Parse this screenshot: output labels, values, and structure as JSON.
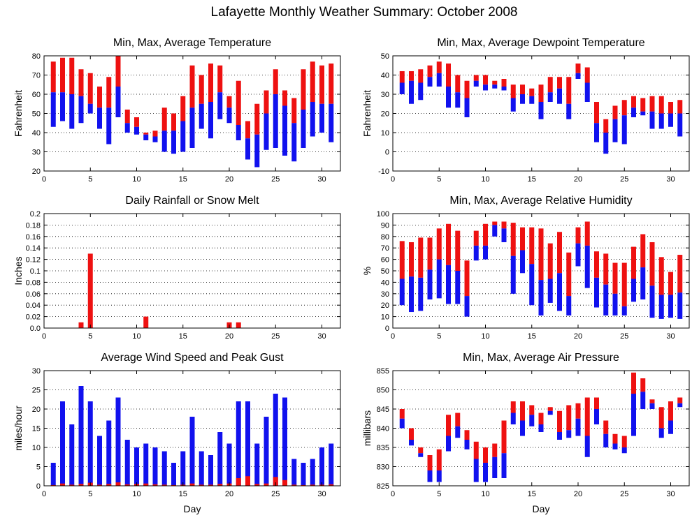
{
  "title": "Lafayette Monthly Weather Summary: October 2008",
  "colors": {
    "red": "#ee1111",
    "blue": "#1111ee"
  },
  "chart_data": [
    {
      "id": "temp",
      "type": "bar",
      "title": "Min, Max, Average Temperature",
      "xlabel": "",
      "ylabel": "Fahrenheit",
      "xlim": [
        0,
        32
      ],
      "ylim": [
        20,
        80
      ],
      "xticks": [
        0,
        5,
        10,
        15,
        20,
        25,
        30
      ],
      "yticks": [
        20,
        30,
        40,
        50,
        60,
        70,
        80
      ],
      "grid": true,
      "x": [
        1,
        2,
        3,
        4,
        5,
        6,
        7,
        8,
        9,
        10,
        11,
        12,
        13,
        14,
        15,
        16,
        17,
        18,
        19,
        20,
        21,
        22,
        23,
        24,
        25,
        26,
        27,
        28,
        29,
        30,
        31
      ],
      "series": [
        {
          "kind": "range",
          "values_min": [
            43,
            46,
            42,
            45,
            50,
            42,
            34,
            48,
            40,
            39,
            36,
            35,
            30,
            29,
            30,
            32,
            42,
            37,
            47,
            45,
            36,
            26,
            22,
            31,
            32,
            28,
            25,
            32,
            38,
            40,
            35
          ],
          "values_avg": [
            61,
            61,
            60,
            59,
            55,
            53,
            53,
            64,
            45,
            43,
            39,
            38,
            41,
            41,
            46,
            53,
            55,
            56,
            61,
            53,
            44,
            37,
            39,
            50,
            60,
            54,
            45,
            52,
            56,
            55,
            55
          ],
          "values_max": [
            77,
            79,
            79,
            73,
            71,
            64,
            69,
            80,
            52,
            48,
            40,
            41,
            53,
            50,
            59,
            75,
            70,
            76,
            75,
            59,
            67,
            46,
            55,
            62,
            73,
            62,
            58,
            73,
            77,
            75,
            76
          ]
        }
      ]
    },
    {
      "id": "dew",
      "type": "bar",
      "title": "Min, Max, Average Dewpoint Temperature",
      "xlabel": "",
      "ylabel": "Fahrenheit",
      "xlim": [
        0,
        32
      ],
      "ylim": [
        -10,
        50
      ],
      "xticks": [
        0,
        5,
        10,
        15,
        20,
        25,
        30
      ],
      "yticks": [
        -10,
        0,
        10,
        20,
        30,
        40,
        50
      ],
      "grid": true,
      "x": [
        1,
        2,
        3,
        4,
        5,
        6,
        7,
        8,
        9,
        10,
        11,
        12,
        13,
        14,
        15,
        16,
        17,
        18,
        19,
        20,
        21,
        22,
        23,
        24,
        25,
        26,
        27,
        28,
        29,
        30,
        31
      ],
      "series": [
        {
          "kind": "range",
          "values_min": [
            30,
            25,
            27,
            34,
            34,
            23,
            23,
            18,
            34,
            32,
            33,
            32,
            21,
            25,
            25,
            17,
            26,
            25,
            17,
            38,
            26,
            5,
            -1,
            5,
            4,
            18,
            19,
            12,
            12,
            13,
            8
          ],
          "values_avg": [
            36,
            37,
            36,
            39,
            41,
            34,
            31,
            28,
            37,
            35,
            35,
            34,
            28,
            30,
            29,
            26,
            31,
            33,
            25,
            41,
            36,
            15,
            10,
            17,
            19,
            23,
            21,
            21,
            20,
            20,
            20
          ],
          "values_max": [
            42,
            42,
            43,
            45,
            47,
            46,
            40,
            37,
            40,
            40,
            37,
            38,
            35,
            35,
            33,
            35,
            39,
            39,
            39,
            46,
            44,
            26,
            17,
            24,
            27,
            29,
            28,
            29,
            29,
            26,
            27
          ]
        }
      ]
    },
    {
      "id": "rain",
      "type": "bar",
      "title": "Daily Rainfall or Snow Melt",
      "xlabel": "",
      "ylabel": "Inches",
      "xlim": [
        0,
        32
      ],
      "ylim": [
        0,
        0.2
      ],
      "xticks": [
        0,
        5,
        10,
        15,
        20,
        25,
        30
      ],
      "yticks": [
        0,
        0.02,
        0.04,
        0.06,
        0.08,
        0.1,
        0.12,
        0.14,
        0.16,
        0.18,
        0.2
      ],
      "ytick_labels": [
        "0.0",
        "0.02",
        "0.04",
        "0.06",
        "0.08",
        "0.1",
        "0.12",
        "0.14",
        "0.16",
        "0.18",
        "0.2"
      ],
      "grid": true,
      "x": [
        4,
        5,
        11,
        20,
        21
      ],
      "series": [
        {
          "kind": "value",
          "values": [
            0.01,
            0.13,
            0.02,
            0.01,
            0.01
          ]
        }
      ]
    },
    {
      "id": "rh",
      "type": "bar",
      "title": "Min, Max, Average Relative Humidity",
      "xlabel": "",
      "ylabel": "%",
      "xlim": [
        0,
        32
      ],
      "ylim": [
        0,
        100
      ],
      "xticks": [
        0,
        5,
        10,
        15,
        20,
        25,
        30
      ],
      "yticks": [
        0,
        10,
        20,
        30,
        40,
        50,
        60,
        70,
        80,
        90,
        100
      ],
      "grid": true,
      "x": [
        1,
        2,
        3,
        4,
        5,
        6,
        7,
        8,
        9,
        10,
        11,
        12,
        13,
        14,
        15,
        16,
        17,
        18,
        19,
        20,
        21,
        22,
        23,
        24,
        25,
        26,
        27,
        28,
        29,
        30,
        31
      ],
      "series": [
        {
          "kind": "range",
          "values_min": [
            20,
            14,
            15,
            25,
            26,
            21,
            21,
            10,
            59,
            60,
            80,
            75,
            30,
            48,
            20,
            11,
            22,
            15,
            11,
            54,
            35,
            18,
            11,
            11,
            11,
            23,
            25,
            9,
            8,
            9,
            8
          ],
          "values_avg": [
            43,
            45,
            44,
            51,
            60,
            55,
            50,
            28,
            72,
            72,
            90,
            87,
            63,
            68,
            56,
            42,
            43,
            48,
            28,
            74,
            72,
            44,
            38,
            30,
            19,
            43,
            53,
            37,
            29,
            29,
            31
          ],
          "values_max": [
            76,
            75,
            79,
            79,
            87,
            91,
            85,
            59,
            85,
            91,
            93,
            93,
            92,
            88,
            88,
            87,
            74,
            84,
            66,
            88,
            93,
            67,
            65,
            57,
            57,
            71,
            82,
            75,
            62,
            49,
            64
          ]
        }
      ]
    },
    {
      "id": "wind",
      "type": "bar",
      "title": "Average Wind Speed and Peak Gust",
      "xlabel": "Day",
      "ylabel": "miles/hour",
      "xlim": [
        0,
        32
      ],
      "ylim": [
        0,
        30
      ],
      "xticks": [
        0,
        5,
        10,
        15,
        20,
        25,
        30
      ],
      "yticks": [
        0,
        5,
        10,
        15,
        20,
        25,
        30
      ],
      "grid": true,
      "x": [
        1,
        2,
        3,
        4,
        5,
        6,
        7,
        8,
        9,
        10,
        11,
        12,
        13,
        14,
        15,
        16,
        17,
        18,
        19,
        20,
        21,
        22,
        23,
        24,
        25,
        26,
        27,
        28,
        29,
        30,
        31
      ],
      "series": [
        {
          "name": "",
          "kind": "gust",
          "values": [
            6,
            22,
            16,
            26,
            22,
            13,
            17,
            23,
            12,
            10,
            11,
            10,
            9,
            6,
            9,
            18,
            9,
            8,
            14,
            11,
            22,
            22,
            11,
            18,
            24,
            23,
            7,
            6,
            7,
            10,
            11
          ]
        },
        {
          "name": "",
          "kind": "avg",
          "values": [
            0.2,
            0.6,
            0.3,
            0.5,
            0.8,
            0.3,
            0.5,
            0.9,
            0.4,
            0.5,
            0.6,
            0.4,
            0.3,
            0.2,
            0.3,
            0.6,
            0.3,
            0.3,
            0.5,
            0.6,
            2.0,
            2.5,
            0.5,
            0.6,
            2.3,
            1.5,
            0.3,
            0.2,
            0.3,
            0.3,
            0.4
          ]
        }
      ]
    },
    {
      "id": "pres",
      "type": "bar",
      "title": "Min, Max, Average Air Pressure",
      "xlabel": "Day",
      "ylabel": "millibars",
      "xlim": [
        0,
        32
      ],
      "ylim": [
        825,
        855
      ],
      "xticks": [
        0,
        5,
        10,
        15,
        20,
        25,
        30
      ],
      "yticks": [
        825,
        830,
        835,
        840,
        845,
        850,
        855
      ],
      "grid": true,
      "x": [
        1,
        2,
        3,
        4,
        5,
        6,
        7,
        8,
        9,
        10,
        11,
        12,
        13,
        14,
        15,
        16,
        17,
        18,
        19,
        20,
        21,
        22,
        23,
        24,
        25,
        26,
        27,
        28,
        29,
        30,
        31
      ],
      "series": [
        {
          "kind": "range",
          "values_min": [
            840,
            835.5,
            832.5,
            826,
            826,
            834,
            837.5,
            834.5,
            826,
            826,
            827,
            827,
            841,
            838,
            840.5,
            839,
            843.5,
            837,
            837.5,
            838,
            832.5,
            841,
            835,
            834.5,
            833.5,
            838,
            845,
            845,
            837.5,
            838.5,
            845.5
          ],
          "values_avg": [
            842.5,
            837,
            833.5,
            829,
            829,
            838,
            840.5,
            837,
            832,
            831,
            832.5,
            833.5,
            844,
            842,
            843.5,
            841,
            844.5,
            839,
            839.5,
            842.5,
            838,
            845,
            838.5,
            836,
            835,
            849,
            849.5,
            846.5,
            840,
            842,
            846.5
          ],
          "values_max": [
            845,
            840,
            835,
            833,
            834.5,
            843.5,
            844,
            839.5,
            836.5,
            835,
            836,
            842,
            847,
            847,
            846,
            844,
            845.5,
            844.5,
            846,
            846.5,
            848,
            848,
            842,
            838.5,
            838,
            854.5,
            853,
            847.5,
            845.5,
            847,
            848
          ]
        }
      ]
    }
  ]
}
